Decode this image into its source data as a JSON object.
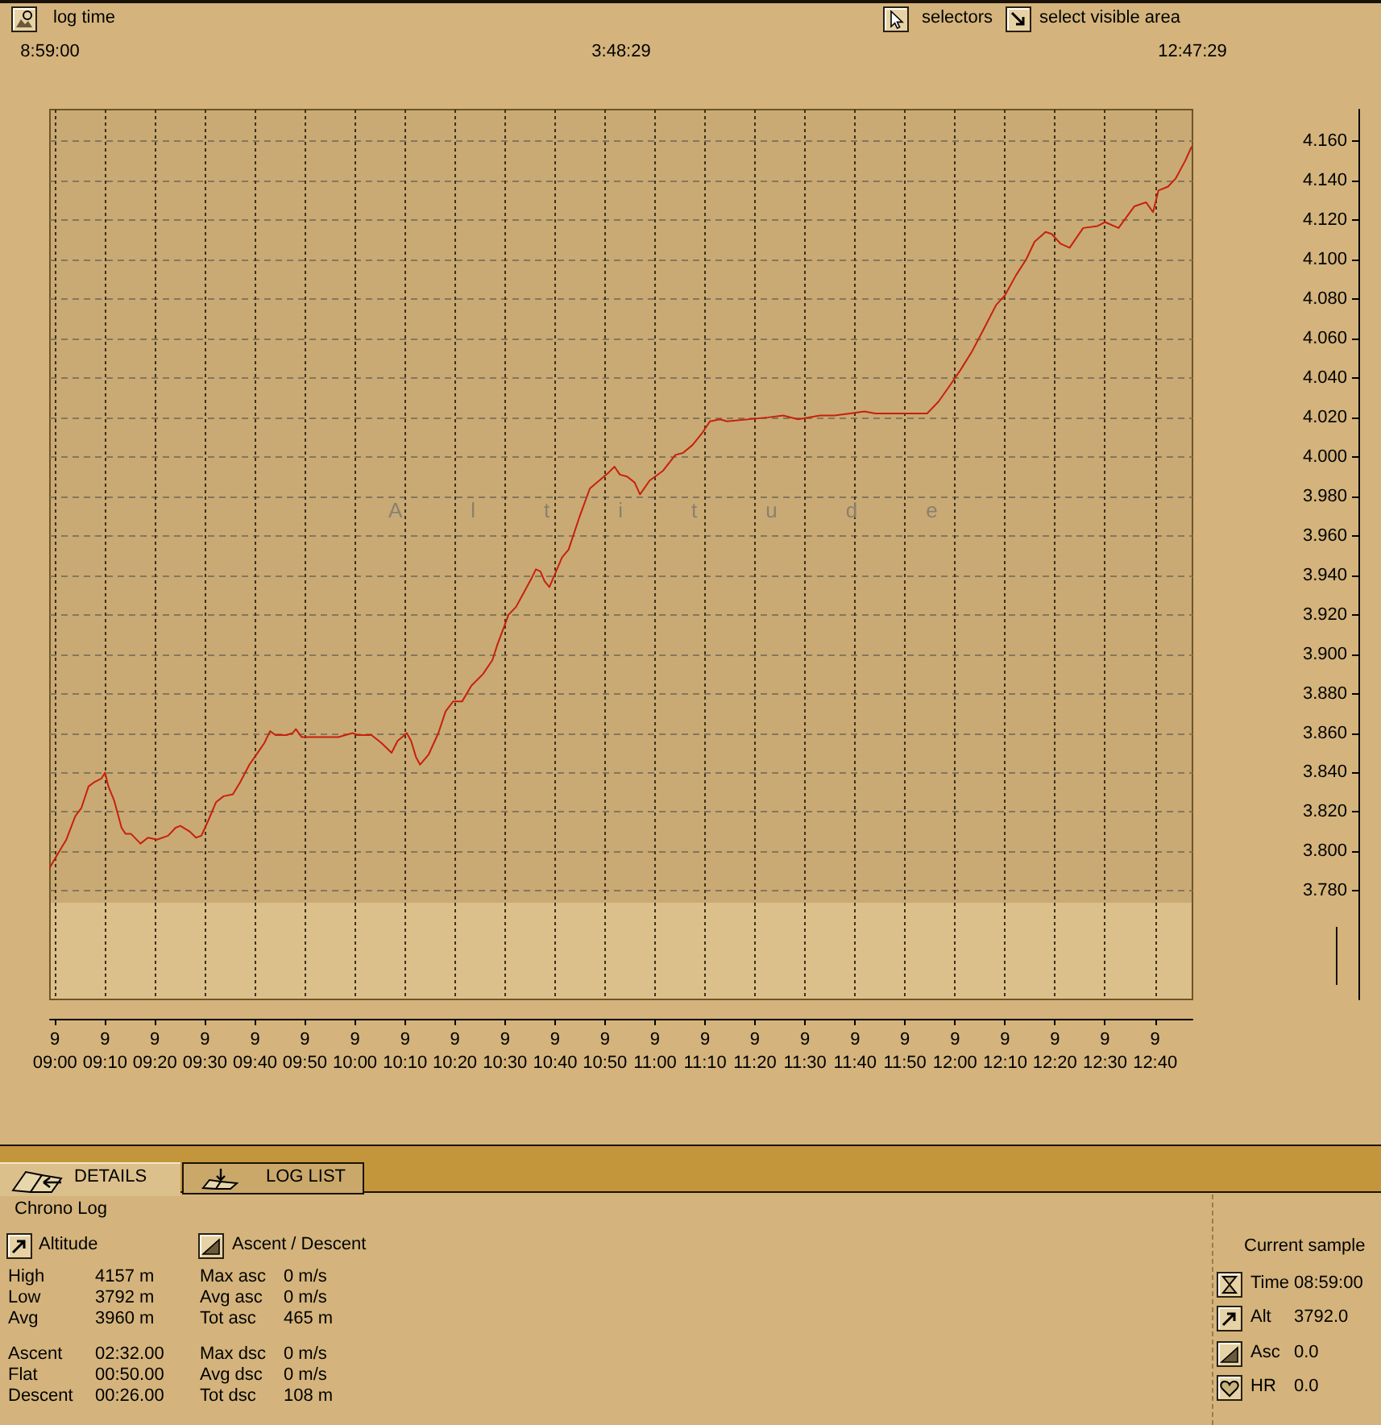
{
  "chart_data": [
    {
      "type": "other",
      "annotations": [
        "log time",
        "selectors",
        "select visible area"
      ]
    },
    {
      "type": "line",
      "title": "Altitude",
      "color": "#c8200c",
      "annotations": [
        "8:59:00",
        "3:48:29",
        "12:47:29",
        "9"
      ],
      "x": [
        8.98333,
        9.018,
        9.038,
        9.068,
        9.088,
        9.112,
        9.13,
        9.155,
        9.167,
        9.178,
        9.197,
        9.222,
        9.235,
        9.253,
        9.285,
        9.31,
        9.34,
        9.377,
        9.402,
        9.418,
        9.45,
        9.47,
        9.488,
        9.512,
        9.537,
        9.562,
        9.593,
        9.617,
        9.648,
        9.68,
        9.698,
        9.717,
        9.735,
        9.772,
        9.792,
        9.803,
        9.822,
        9.87,
        9.945,
        9.968,
        9.993,
        10.007,
        10.055,
        10.088,
        10.122,
        10.142,
        10.173,
        10.187,
        10.203,
        10.217,
        10.245,
        10.278,
        10.302,
        10.327,
        10.357,
        10.388,
        10.427,
        10.458,
        10.475,
        10.512,
        10.537,
        10.562,
        10.587,
        10.603,
        10.618,
        10.632,
        10.648,
        10.665,
        10.69,
        10.712,
        10.747,
        10.783,
        10.822,
        10.845,
        10.865,
        10.883,
        10.907,
        10.932,
        10.95,
        10.982,
        11.027,
        11.068,
        11.093,
        11.125,
        11.157,
        11.183,
        11.217,
        11.24,
        11.377,
        11.427,
        11.477,
        11.55,
        11.598,
        11.65,
        11.698,
        11.735,
        11.907,
        11.945,
        11.982,
        12.018,
        12.055,
        12.093,
        12.137,
        12.167,
        12.203,
        12.237,
        12.265,
        12.302,
        12.322,
        12.352,
        12.382,
        12.427,
        12.475,
        12.5,
        12.545,
        12.598,
        12.637,
        12.66,
        12.678,
        12.71,
        12.735,
        12.767,
        12.788
      ],
      "values": [
        3.792,
        3.801,
        3.806,
        3.818,
        3.822,
        3.833,
        3.835,
        3.837,
        3.84,
        3.833,
        3.826,
        3.812,
        3.809,
        3.809,
        3.804,
        3.807,
        3.806,
        3.808,
        3.812,
        3.813,
        3.81,
        3.807,
        3.808,
        3.816,
        3.825,
        3.828,
        3.829,
        3.835,
        3.844,
        3.851,
        3.855,
        3.861,
        3.859,
        3.859,
        3.86,
        3.862,
        3.858,
        3.858,
        3.858,
        3.859,
        3.86,
        3.859,
        3.859,
        3.855,
        3.85,
        3.856,
        3.86,
        3.856,
        3.848,
        3.844,
        3.849,
        3.86,
        3.871,
        3.876,
        3.876,
        3.884,
        3.89,
        3.897,
        3.905,
        3.92,
        3.924,
        3.931,
        3.938,
        3.943,
        3.942,
        3.937,
        3.934,
        3.94,
        3.949,
        3.953,
        3.969,
        3.984,
        3.989,
        3.992,
        3.995,
        3.991,
        3.99,
        3.987,
        3.981,
        3.988,
        3.993,
        4.001,
        4.002,
        4.006,
        4.012,
        4.018,
        4.019,
        4.018,
        4.02,
        4.021,
        4.019,
        4.021,
        4.021,
        4.022,
        4.023,
        4.022,
        4.022,
        4.028,
        4.036,
        4.044,
        4.053,
        4.064,
        4.077,
        4.082,
        4.092,
        4.1,
        4.109,
        4.114,
        4.113,
        4.108,
        4.106,
        4.116,
        4.117,
        4.119,
        4.116,
        4.127,
        4.129,
        4.124,
        4.135,
        4.137,
        4.141,
        4.15,
        4.157
      ],
      "xlim": [
        8.98333,
        12.79139
      ],
      "xticks": [
        {
          "value": 9,
          "label": "09:00"
        },
        {
          "value": 9.167,
          "label": "09:10"
        },
        {
          "value": 9.333,
          "label": "09:20"
        },
        {
          "value": 9.5,
          "label": "09:30"
        },
        {
          "value": 9.667,
          "label": "09:40"
        },
        {
          "value": 9.833,
          "label": "09:50"
        },
        {
          "value": 10,
          "label": "10:00"
        },
        {
          "value": 10.167,
          "label": "10:10"
        },
        {
          "value": 10.333,
          "label": "10:20"
        },
        {
          "value": 10.5,
          "label": "10:30"
        },
        {
          "value": 10.667,
          "label": "10:40"
        },
        {
          "value": 10.833,
          "label": "10:50"
        },
        {
          "value": 11,
          "label": "11:00"
        },
        {
          "value": 11.167,
          "label": "11:10"
        },
        {
          "value": 11.333,
          "label": "11:20"
        },
        {
          "value": 11.5,
          "label": "11:30"
        },
        {
          "value": 11.667,
          "label": "11:40"
        },
        {
          "value": 11.833,
          "label": "11:50"
        },
        {
          "value": 12,
          "label": "12:00"
        },
        {
          "value": 12.167,
          "label": "12:10"
        },
        {
          "value": 12.333,
          "label": "12:20"
        },
        {
          "value": 12.5,
          "label": "12:30"
        },
        {
          "value": 12.667,
          "label": "12:40"
        }
      ],
      "ylim": [
        3.725,
        4.176
      ],
      "yticks": [
        {
          "value": 3.78,
          "label": "3.780"
        },
        {
          "value": 3.8,
          "label": "3.800"
        },
        {
          "value": 3.82,
          "label": "3.820"
        },
        {
          "value": 3.84,
          "label": "3.840"
        },
        {
          "value": 3.86,
          "label": "3.860"
        },
        {
          "value": 3.88,
          "label": "3.880"
        },
        {
          "value": 3.9,
          "label": "3.900"
        },
        {
          "value": 3.92,
          "label": "3.920"
        },
        {
          "value": 3.94,
          "label": "3.940"
        },
        {
          "value": 3.96,
          "label": "3.960"
        },
        {
          "value": 3.98,
          "label": "3.980"
        },
        {
          "value": 4,
          "label": "4.000"
        },
        {
          "value": 4.02,
          "label": "4.020"
        },
        {
          "value": 4.04,
          "label": "4.040"
        },
        {
          "value": 4.06,
          "label": "4.060"
        },
        {
          "value": 4.08,
          "label": "4.080"
        },
        {
          "value": 4.1,
          "label": "4.100"
        },
        {
          "value": 4.12,
          "label": "4.120"
        },
        {
          "value": 4.14,
          "label": "4.140"
        },
        {
          "value": 4.16,
          "label": "4.160"
        }
      ],
      "grid": true,
      "bands": [
        {
          "axis": "y",
          "from": 3.774,
          "to": 4.176,
          "color": "#c9aa74"
        },
        {
          "axis": "y",
          "from": 3.725,
          "to": 3.774,
          "color": "#dcc08c"
        }
      ]
    },
    {
      "type": "other",
      "title": "Chrono Log",
      "annotations": [
        "DETAILS",
        "LOG LIST",
        "Altitude",
        "Ascent / Descent",
        "Current sample",
        "High",
        "4157 m",
        "Max asc",
        "0 m/s",
        "Low",
        "3792 m",
        "Avg asc",
        "0 m/s",
        "Avg",
        "3960 m",
        "Tot asc",
        "465 m",
        "Ascent",
        "02:32.00",
        "Max dsc",
        "0 m/s",
        "Flat",
        "00:50.00",
        "Avg dsc",
        "0 m/s",
        "Descent",
        "00:26.00",
        "Tot dsc",
        "108 m",
        "Time",
        "08:59:00",
        "Alt",
        "3792.0",
        "Asc",
        "0.0",
        "HR",
        "0.0"
      ]
    }
  ]
}
